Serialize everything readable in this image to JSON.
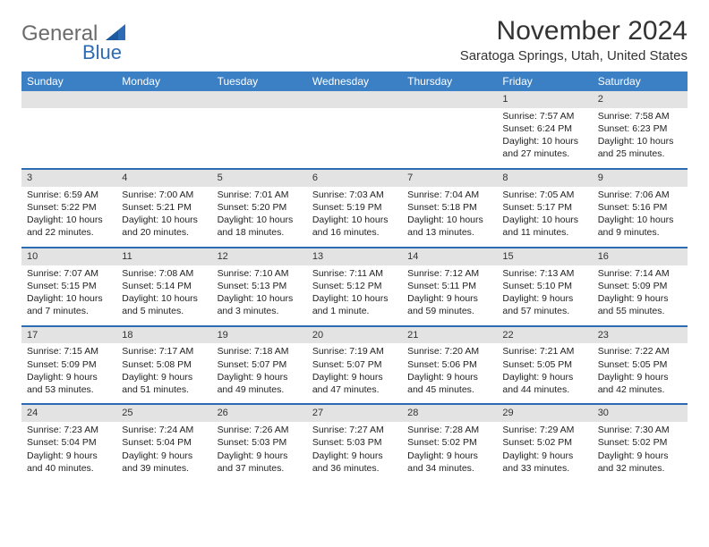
{
  "brand": {
    "part1": "General",
    "part2": "Blue",
    "color_gray": "#6b6b6b",
    "color_blue": "#2d6bb5"
  },
  "title": "November 2024",
  "location": "Saratoga Springs, Utah, United States",
  "colors": {
    "header_bg": "#3b7fc4",
    "header_fg": "#ffffff",
    "daynum_bg": "#e3e3e3",
    "row_border": "#2d6bb5",
    "text": "#222222",
    "page_bg": "#ffffff"
  },
  "weekdays": [
    "Sunday",
    "Monday",
    "Tuesday",
    "Wednesday",
    "Thursday",
    "Friday",
    "Saturday"
  ],
  "weeks": [
    [
      null,
      null,
      null,
      null,
      null,
      {
        "n": "1",
        "sr": "7:57 AM",
        "ss": "6:24 PM",
        "dl": "10 hours and 27 minutes."
      },
      {
        "n": "2",
        "sr": "7:58 AM",
        "ss": "6:23 PM",
        "dl": "10 hours and 25 minutes."
      }
    ],
    [
      {
        "n": "3",
        "sr": "6:59 AM",
        "ss": "5:22 PM",
        "dl": "10 hours and 22 minutes."
      },
      {
        "n": "4",
        "sr": "7:00 AM",
        "ss": "5:21 PM",
        "dl": "10 hours and 20 minutes."
      },
      {
        "n": "5",
        "sr": "7:01 AM",
        "ss": "5:20 PM",
        "dl": "10 hours and 18 minutes."
      },
      {
        "n": "6",
        "sr": "7:03 AM",
        "ss": "5:19 PM",
        "dl": "10 hours and 16 minutes."
      },
      {
        "n": "7",
        "sr": "7:04 AM",
        "ss": "5:18 PM",
        "dl": "10 hours and 13 minutes."
      },
      {
        "n": "8",
        "sr": "7:05 AM",
        "ss": "5:17 PM",
        "dl": "10 hours and 11 minutes."
      },
      {
        "n": "9",
        "sr": "7:06 AM",
        "ss": "5:16 PM",
        "dl": "10 hours and 9 minutes."
      }
    ],
    [
      {
        "n": "10",
        "sr": "7:07 AM",
        "ss": "5:15 PM",
        "dl": "10 hours and 7 minutes."
      },
      {
        "n": "11",
        "sr": "7:08 AM",
        "ss": "5:14 PM",
        "dl": "10 hours and 5 minutes."
      },
      {
        "n": "12",
        "sr": "7:10 AM",
        "ss": "5:13 PM",
        "dl": "10 hours and 3 minutes."
      },
      {
        "n": "13",
        "sr": "7:11 AM",
        "ss": "5:12 PM",
        "dl": "10 hours and 1 minute."
      },
      {
        "n": "14",
        "sr": "7:12 AM",
        "ss": "5:11 PM",
        "dl": "9 hours and 59 minutes."
      },
      {
        "n": "15",
        "sr": "7:13 AM",
        "ss": "5:10 PM",
        "dl": "9 hours and 57 minutes."
      },
      {
        "n": "16",
        "sr": "7:14 AM",
        "ss": "5:09 PM",
        "dl": "9 hours and 55 minutes."
      }
    ],
    [
      {
        "n": "17",
        "sr": "7:15 AM",
        "ss": "5:09 PM",
        "dl": "9 hours and 53 minutes."
      },
      {
        "n": "18",
        "sr": "7:17 AM",
        "ss": "5:08 PM",
        "dl": "9 hours and 51 minutes."
      },
      {
        "n": "19",
        "sr": "7:18 AM",
        "ss": "5:07 PM",
        "dl": "9 hours and 49 minutes."
      },
      {
        "n": "20",
        "sr": "7:19 AM",
        "ss": "5:07 PM",
        "dl": "9 hours and 47 minutes."
      },
      {
        "n": "21",
        "sr": "7:20 AM",
        "ss": "5:06 PM",
        "dl": "9 hours and 45 minutes."
      },
      {
        "n": "22",
        "sr": "7:21 AM",
        "ss": "5:05 PM",
        "dl": "9 hours and 44 minutes."
      },
      {
        "n": "23",
        "sr": "7:22 AM",
        "ss": "5:05 PM",
        "dl": "9 hours and 42 minutes."
      }
    ],
    [
      {
        "n": "24",
        "sr": "7:23 AM",
        "ss": "5:04 PM",
        "dl": "9 hours and 40 minutes."
      },
      {
        "n": "25",
        "sr": "7:24 AM",
        "ss": "5:04 PM",
        "dl": "9 hours and 39 minutes."
      },
      {
        "n": "26",
        "sr": "7:26 AM",
        "ss": "5:03 PM",
        "dl": "9 hours and 37 minutes."
      },
      {
        "n": "27",
        "sr": "7:27 AM",
        "ss": "5:03 PM",
        "dl": "9 hours and 36 minutes."
      },
      {
        "n": "28",
        "sr": "7:28 AM",
        "ss": "5:02 PM",
        "dl": "9 hours and 34 minutes."
      },
      {
        "n": "29",
        "sr": "7:29 AM",
        "ss": "5:02 PM",
        "dl": "9 hours and 33 minutes."
      },
      {
        "n": "30",
        "sr": "7:30 AM",
        "ss": "5:02 PM",
        "dl": "9 hours and 32 minutes."
      }
    ]
  ],
  "labels": {
    "sunrise": "Sunrise:",
    "sunset": "Sunset:",
    "daylight": "Daylight:"
  }
}
